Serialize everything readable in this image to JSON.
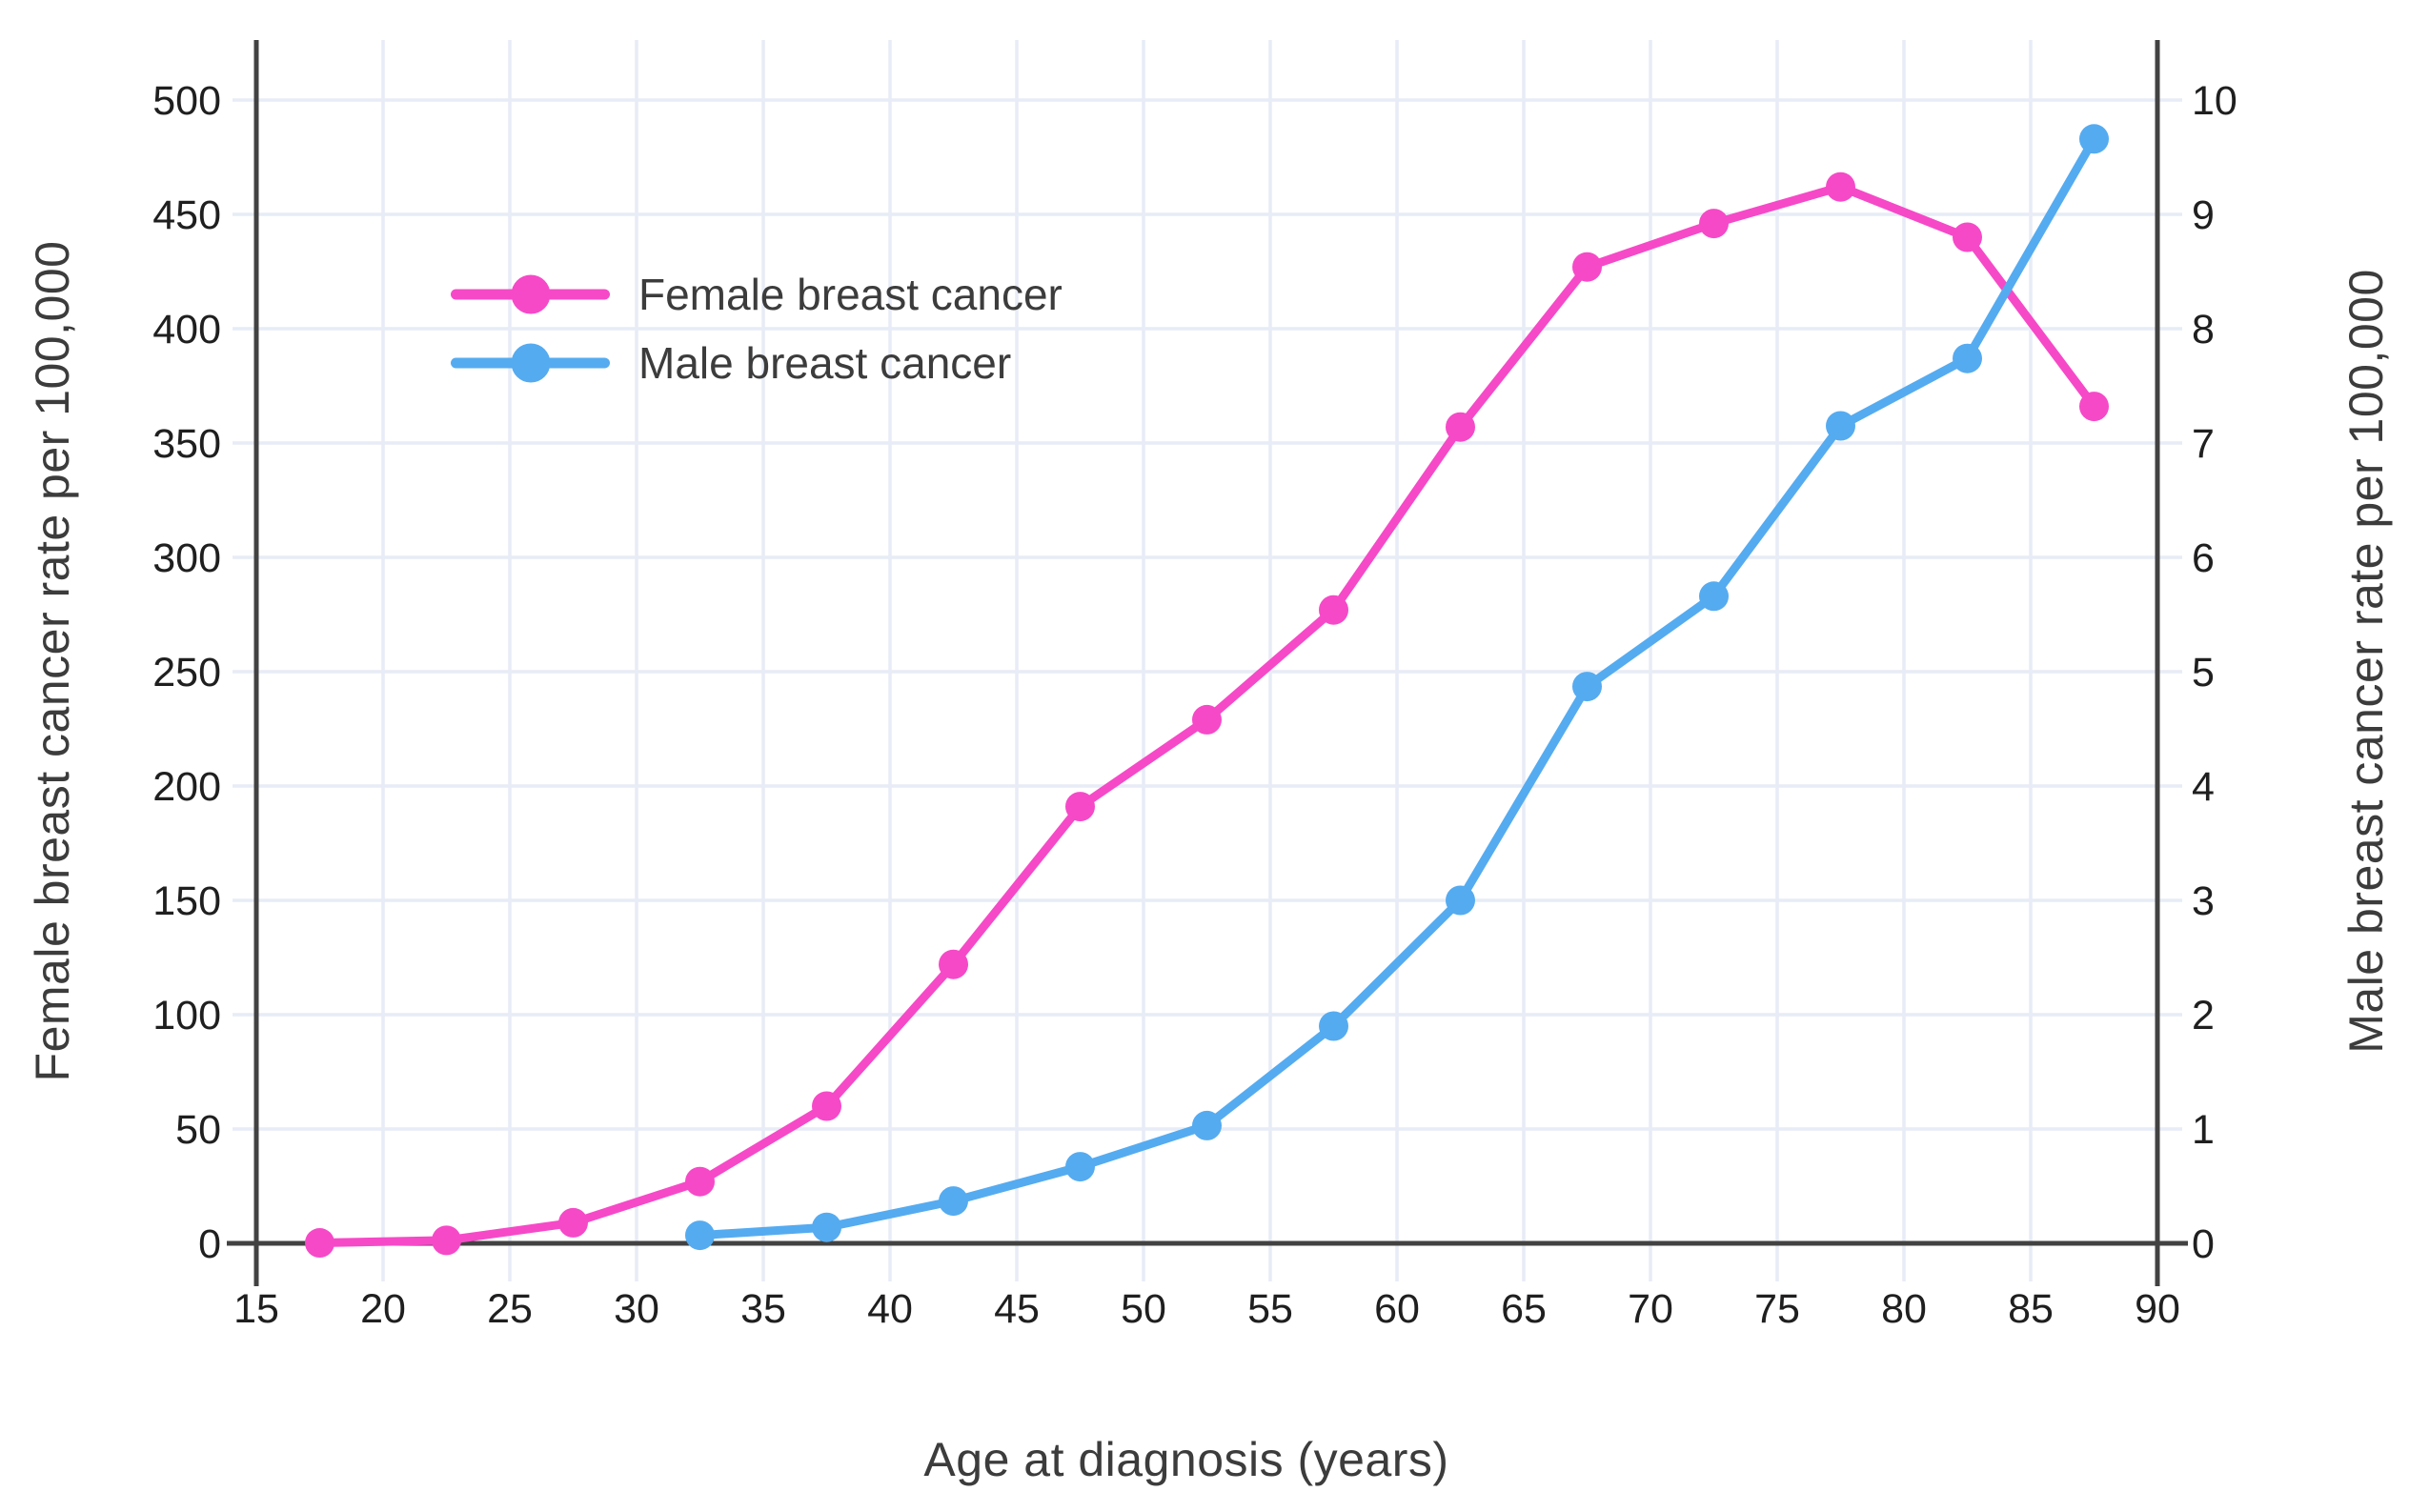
{
  "background": "#ffffff",
  "colors": {
    "female_series": "#f649c8",
    "male_series": "#55abf0",
    "gridline": "#e7ecf6",
    "axis_spine": "#424242",
    "tick_label": "#1f1f1f",
    "title_text": "#3c3c3c"
  },
  "chart_data": {
    "type": "line",
    "title": "",
    "xlabel": "Age at diagnosis (years)",
    "ylabel_left": "Female breast cancer rate per 100,000",
    "ylabel_right": "Male breast cancer rate per 100,000",
    "xlim": [
      15,
      90
    ],
    "ylim_left": [
      0,
      500
    ],
    "ylim_right": [
      0,
      10
    ],
    "x_ticks": [
      15,
      20,
      25,
      30,
      35,
      40,
      45,
      50,
      55,
      60,
      65,
      70,
      75,
      80,
      85,
      90
    ],
    "yticks_left": [
      0,
      50,
      100,
      150,
      200,
      250,
      300,
      350,
      400,
      450,
      500
    ],
    "yticks_right": [
      0,
      1,
      2,
      3,
      4,
      5,
      6,
      7,
      8,
      9,
      10
    ],
    "grid": true,
    "legend_position": "upper-left-inside",
    "marker": "circle",
    "series": [
      {
        "name": "Female breast cancer",
        "axis": "left",
        "color": "#f649c8",
        "x": [
          17.5,
          22.5,
          27.5,
          32.5,
          37.5,
          42.5,
          47.5,
          52.5,
          57.5,
          62.5,
          67.5,
          72.5,
          77.5,
          82.5,
          87.5
        ],
        "y": [
          0.2,
          1.3,
          9,
          27,
          60,
          122,
          191,
          229,
          277,
          357,
          427,
          446,
          462,
          440,
          366
        ]
      },
      {
        "name": "Male breast cancer",
        "axis": "right",
        "color": "#55abf0",
        "x": [
          32.5,
          37.5,
          42.5,
          47.5,
          52.5,
          57.5,
          62.5,
          67.5,
          72.5,
          77.5,
          82.5,
          87.5
        ],
        "y": [
          0.07,
          0.14,
          0.37,
          0.67,
          1.03,
          1.9,
          3.0,
          4.87,
          5.66,
          7.15,
          7.74,
          9.66
        ]
      }
    ]
  }
}
